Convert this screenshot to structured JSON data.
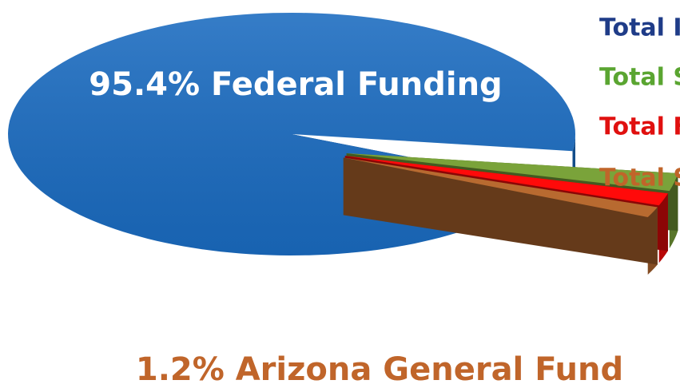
{
  "chart_data": {
    "type": "pie",
    "categories": [
      "Total I",
      "Total S",
      "Total F",
      "Total S"
    ],
    "values": [
      95.4,
      2.0,
      1.4,
      1.2
    ],
    "value_labels": [
      "95.4% Federal Funding",
      null,
      null,
      "1.2% Arizona General Fund"
    ],
    "colors": [
      "#1a6bc0",
      "#7aa33a",
      "#ff0a0a",
      "#b86a30"
    ],
    "legend_colors": [
      "#1f3c88",
      "#5aa531",
      "#e0100f",
      "#c0652a"
    ],
    "legend": "right"
  }
}
